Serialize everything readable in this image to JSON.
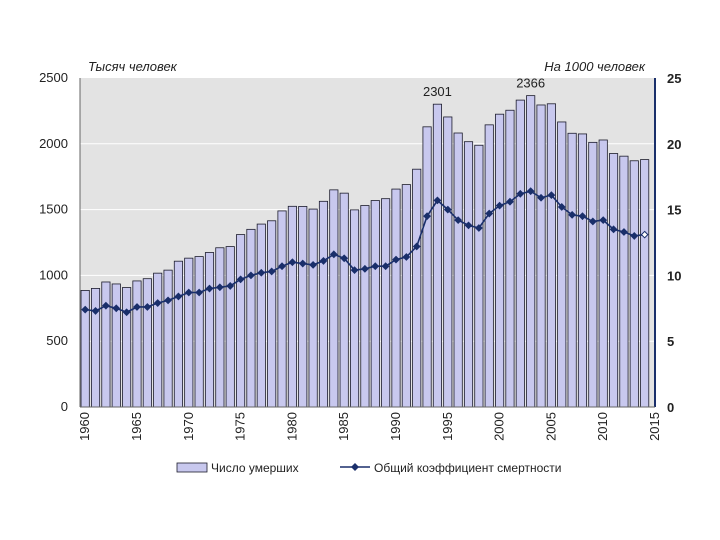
{
  "chart_data": {
    "type": "bar",
    "x": [
      1960,
      1961,
      1962,
      1963,
      1964,
      1965,
      1966,
      1967,
      1968,
      1969,
      1970,
      1971,
      1972,
      1973,
      1974,
      1975,
      1976,
      1977,
      1978,
      1979,
      1980,
      1981,
      1982,
      1983,
      1984,
      1985,
      1986,
      1987,
      1988,
      1989,
      1990,
      1991,
      1992,
      1993,
      1994,
      1995,
      1996,
      1997,
      1998,
      1999,
      2000,
      2001,
      2002,
      2003,
      2004,
      2005,
      2006,
      2007,
      2008,
      2009,
      2010,
      2011,
      2012,
      2013,
      2014
    ],
    "x_ticks": [
      "1960",
      "1965",
      "1970",
      "1975",
      "1980",
      "1985",
      "1990",
      "1995",
      "2000",
      "2005",
      "2010",
      "2015"
    ],
    "xlim": [
      1959.5,
      2015
    ],
    "series": [
      {
        "name": "Число умерших",
        "type": "bar",
        "axis": "left",
        "values": [
          886,
          901,
          950,
          935,
          908,
          958,
          975,
          1017,
          1040,
          1108,
          1131,
          1143,
          1174,
          1210,
          1219,
          1310,
          1350,
          1390,
          1415,
          1490,
          1525,
          1524,
          1504,
          1563,
          1650,
          1625,
          1498,
          1531,
          1569,
          1583,
          1656,
          1690,
          1807,
          2129,
          2301,
          2204,
          2082,
          2016,
          1989,
          2144,
          2225,
          2255,
          2332,
          2366,
          2295,
          2304,
          2166,
          2080,
          2075,
          2011,
          2029,
          1926,
          1906,
          1871,
          1880
        ]
      },
      {
        "name": "Общий коэффициент смертности",
        "type": "line",
        "axis": "right",
        "values": [
          7.4,
          7.3,
          7.7,
          7.5,
          7.2,
          7.6,
          7.6,
          7.9,
          8.1,
          8.4,
          8.7,
          8.7,
          9.0,
          9.1,
          9.2,
          9.7,
          10.0,
          10.2,
          10.3,
          10.7,
          11.0,
          10.9,
          10.8,
          11.1,
          11.6,
          11.3,
          10.4,
          10.5,
          10.7,
          10.7,
          11.2,
          11.4,
          12.2,
          14.5,
          15.7,
          15.0,
          14.2,
          13.8,
          13.6,
          14.7,
          15.3,
          15.6,
          16.2,
          16.4,
          15.9,
          16.1,
          15.2,
          14.6,
          14.5,
          14.1,
          14.2,
          13.5,
          13.3,
          13.0,
          13.1
        ]
      }
    ],
    "y_left": {
      "unit_label": "Тысяч человек",
      "lim": [
        0,
        2500
      ],
      "ticks": [
        "0",
        "500",
        "1000",
        "1500",
        "2000",
        "2500"
      ]
    },
    "y_right": {
      "unit_label": "На 1000 человек",
      "lim": [
        0,
        25
      ],
      "ticks": [
        "0",
        "5",
        "10",
        "15",
        "20",
        "25"
      ]
    },
    "annotations": [
      {
        "text": "2301",
        "x": 1994,
        "y": 2301
      },
      {
        "text": "2366",
        "x": 2003,
        "y": 2366
      }
    ],
    "grid": "horizontal",
    "legend_position": "bottom",
    "colors": {
      "bar_fill": "#c8c8ee",
      "bar_stroke": "#1c1c2c",
      "line": "#1a2f6b",
      "plot_bg": "#e3e3e3",
      "grid": "#ffffff"
    }
  }
}
